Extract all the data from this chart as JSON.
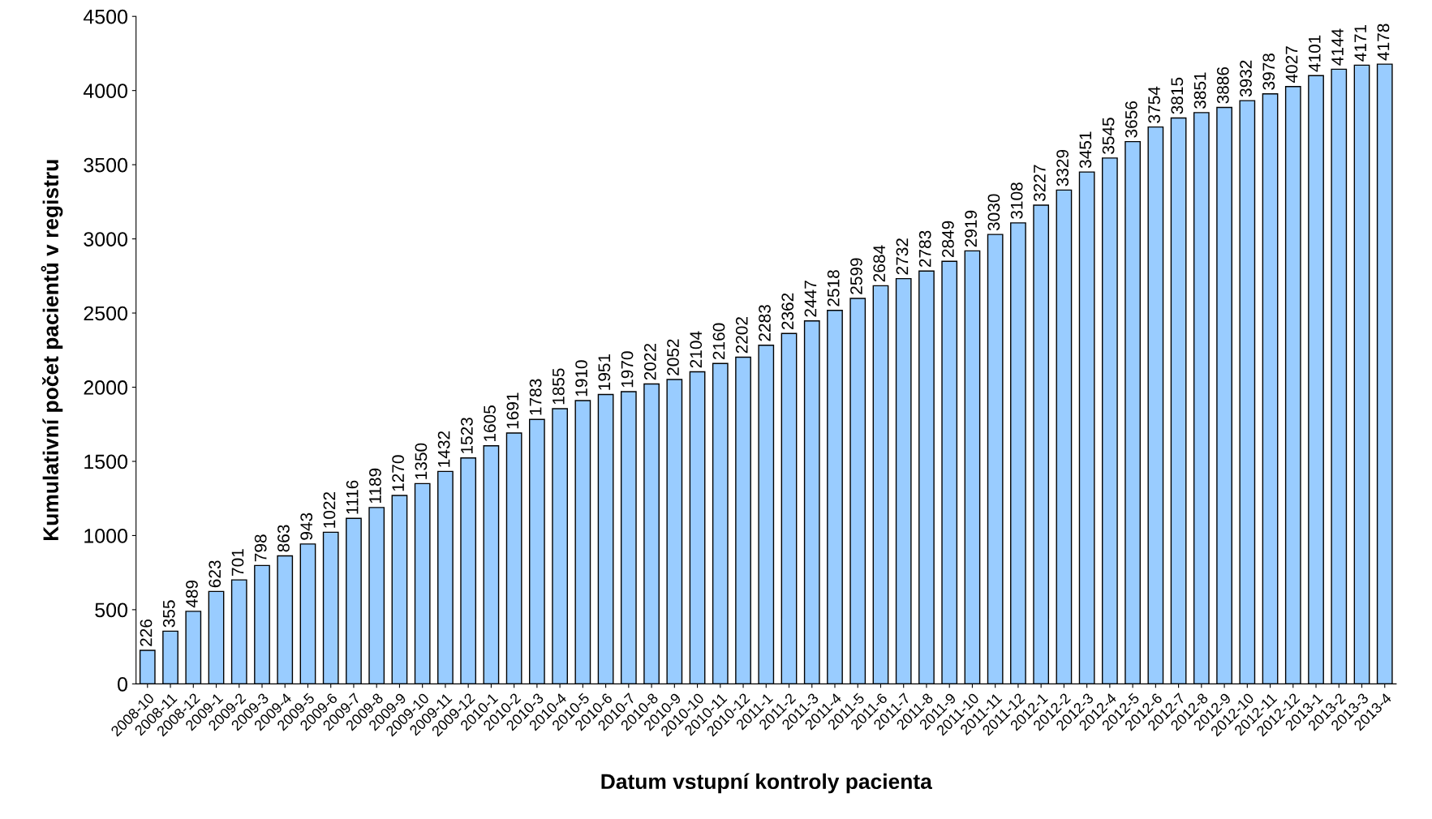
{
  "chart_data": {
    "type": "bar",
    "xlabel": "Datum vstupní kontroly pacienta",
    "ylabel": "Kumulativní počet pacientů v registru",
    "categories": [
      "2008-10",
      "2008-11",
      "2008-12",
      "2009-1",
      "2009-2",
      "2009-3",
      "2009-4",
      "2009-5",
      "2009-6",
      "2009-7",
      "2009-8",
      "2009-9",
      "2009-10",
      "2009-11",
      "2009-12",
      "2010-1",
      "2010-2",
      "2010-3",
      "2010-4",
      "2010-5",
      "2010-6",
      "2010-7",
      "2010-8",
      "2010-9",
      "2010-10",
      "2010-11",
      "2010-12",
      "2011-1",
      "2011-2",
      "2011-3",
      "2011-4",
      "2011-5",
      "2011-6",
      "2011-7",
      "2011-8",
      "2011-9",
      "2011-10",
      "2011-11",
      "2011-12",
      "2012-1",
      "2012-2",
      "2012-3",
      "2012-4",
      "2012-5",
      "2012-6",
      "2012-7",
      "2012-8",
      "2012-9",
      "2012-10",
      "2012-11",
      "2012-12",
      "2013-1",
      "2013-2",
      "2013-3",
      "2013-4"
    ],
    "values": [
      226,
      355,
      489,
      623,
      701,
      798,
      863,
      943,
      1022,
      1116,
      1189,
      1270,
      1350,
      1432,
      1523,
      1605,
      1691,
      1783,
      1855,
      1910,
      1951,
      1970,
      2022,
      2052,
      2104,
      2160,
      2202,
      2283,
      2362,
      2447,
      2518,
      2599,
      2684,
      2732,
      2783,
      2849,
      2919,
      3030,
      3108,
      3227,
      3329,
      3451,
      3545,
      3656,
      3754,
      3815,
      3851,
      3886,
      3932,
      3978,
      4027,
      4101,
      4144,
      4171,
      4178
    ],
    "color": "#99ccff",
    "ylim": [
      0,
      4500
    ],
    "yticks": [
      0,
      500,
      1000,
      1500,
      2000,
      2500,
      3000,
      3500,
      4000,
      4500
    ],
    "grid": false,
    "data_labels": true
  }
}
